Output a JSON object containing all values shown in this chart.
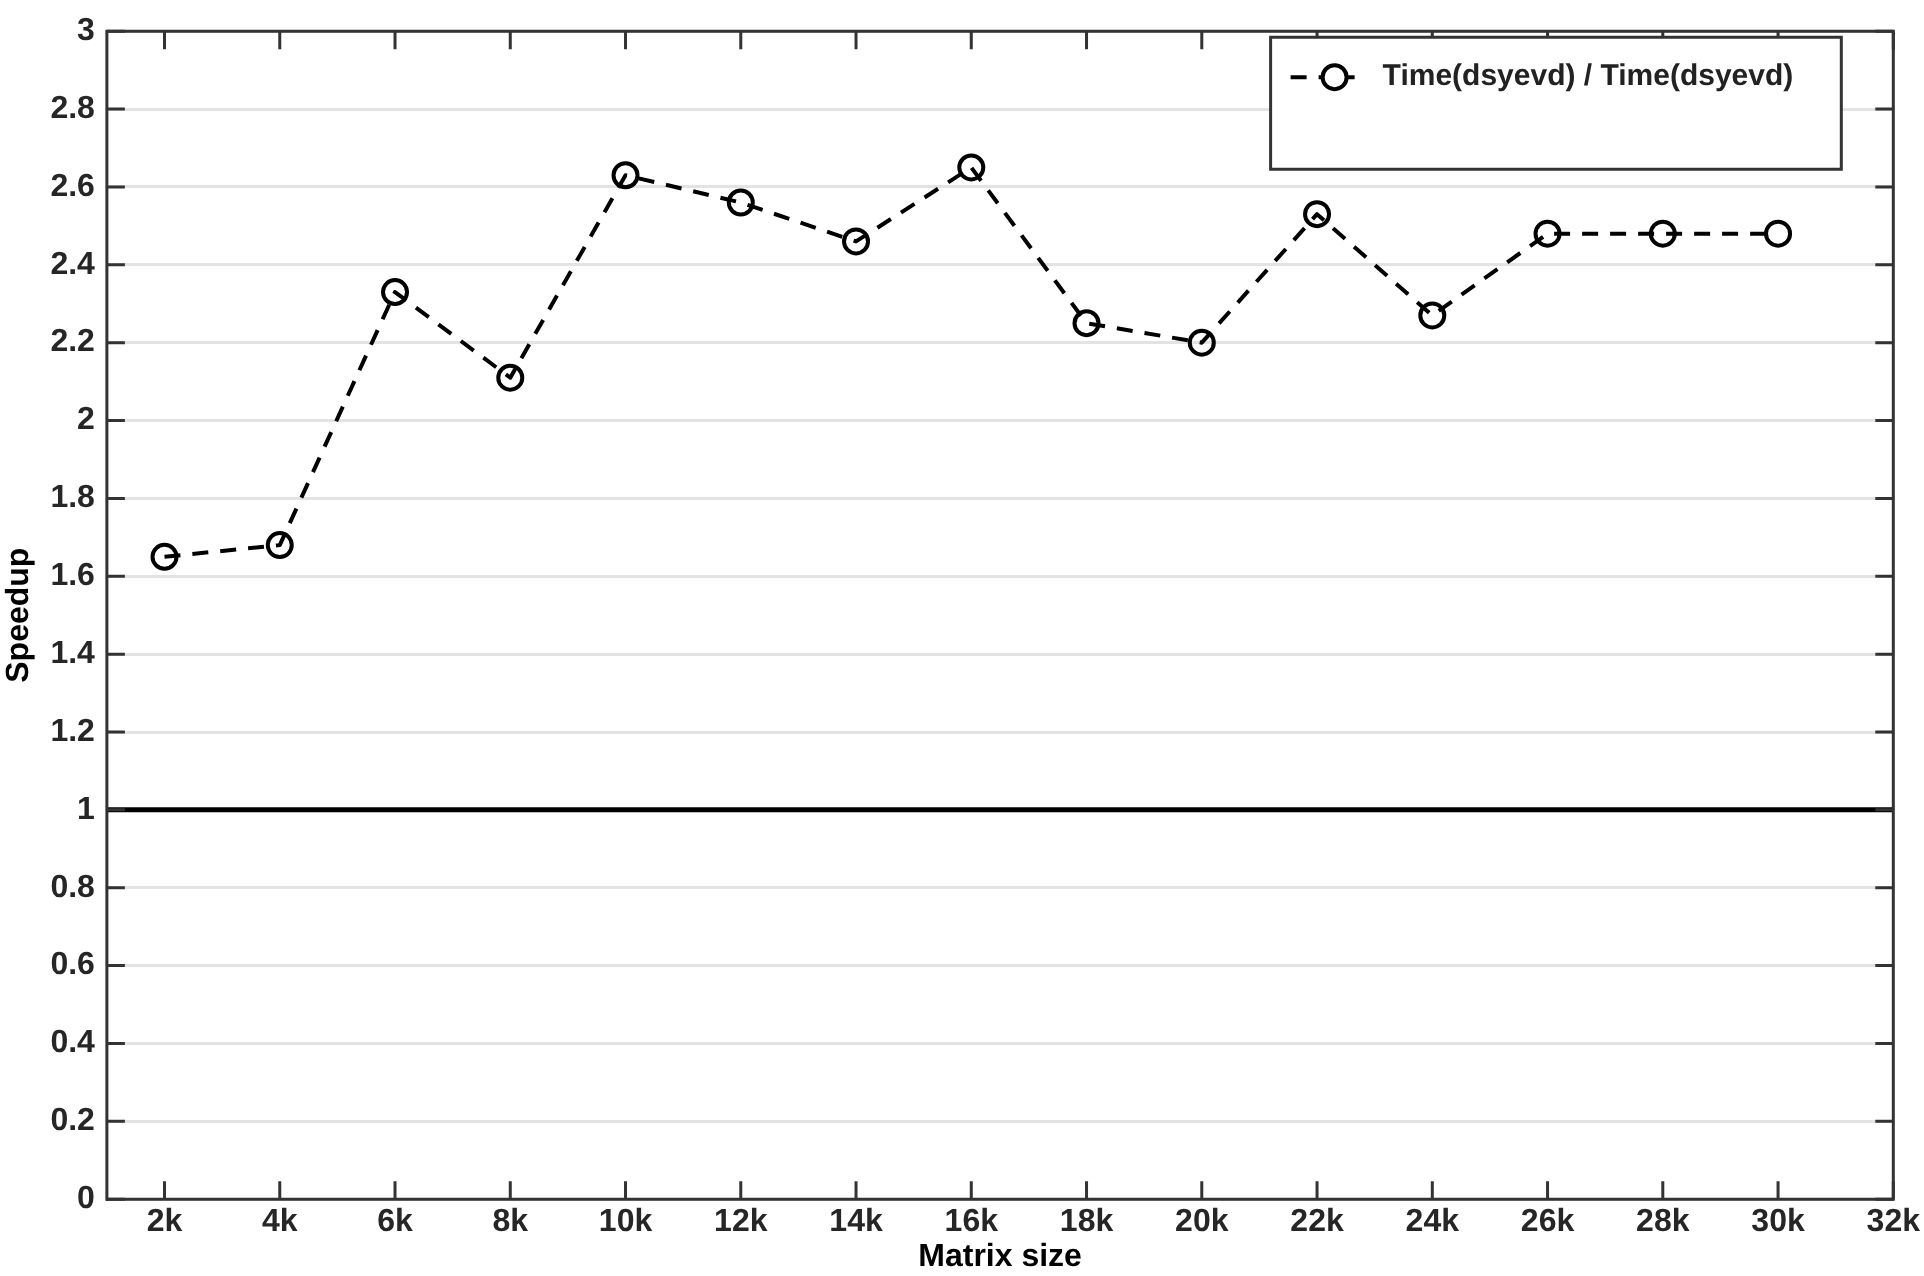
{
  "chart_data": {
    "type": "line",
    "xlabel": "Matrix size",
    "ylabel": "Speedup",
    "x": [
      2000,
      4000,
      6000,
      8000,
      10000,
      12000,
      14000,
      16000,
      18000,
      20000,
      22000,
      24000,
      26000,
      28000,
      30000
    ],
    "series": [
      {
        "name": "Time(dsyevd) / Time(dsyevd)",
        "color": "#000000",
        "values": [
          1.65,
          1.68,
          2.33,
          2.11,
          2.63,
          2.56,
          2.46,
          2.65,
          2.25,
          2.2,
          2.53,
          2.27,
          2.48,
          2.48,
          2.48
        ]
      }
    ],
    "xlim": [
      1000,
      32000
    ],
    "xticks": [
      {
        "value": 2000,
        "label": "2k"
      },
      {
        "value": 4000,
        "label": "4k"
      },
      {
        "value": 6000,
        "label": "6k"
      },
      {
        "value": 8000,
        "label": "8k"
      },
      {
        "value": 10000,
        "label": "10k"
      },
      {
        "value": 12000,
        "label": "12k"
      },
      {
        "value": 14000,
        "label": "14k"
      },
      {
        "value": 16000,
        "label": "16k"
      },
      {
        "value": 18000,
        "label": "18k"
      },
      {
        "value": 20000,
        "label": "20k"
      },
      {
        "value": 22000,
        "label": "22k"
      },
      {
        "value": 24000,
        "label": "24k"
      },
      {
        "value": 26000,
        "label": "26k"
      },
      {
        "value": 28000,
        "label": "28k"
      },
      {
        "value": 30000,
        "label": "30k"
      },
      {
        "value": 32000,
        "label": "32k"
      }
    ],
    "ylim": [
      0,
      3
    ],
    "yticks": [
      0,
      0.2,
      0.4,
      0.6,
      0.8,
      1,
      1.2,
      1.4,
      1.6,
      1.8,
      2,
      2.2,
      2.4,
      2.6,
      2.8,
      3
    ],
    "ref_lines": [
      {
        "axis": "y",
        "value": 1,
        "color": "#000000"
      }
    ],
    "grid": "y",
    "legend": "top right",
    "marker": "circle",
    "line_style": "dashed"
  }
}
